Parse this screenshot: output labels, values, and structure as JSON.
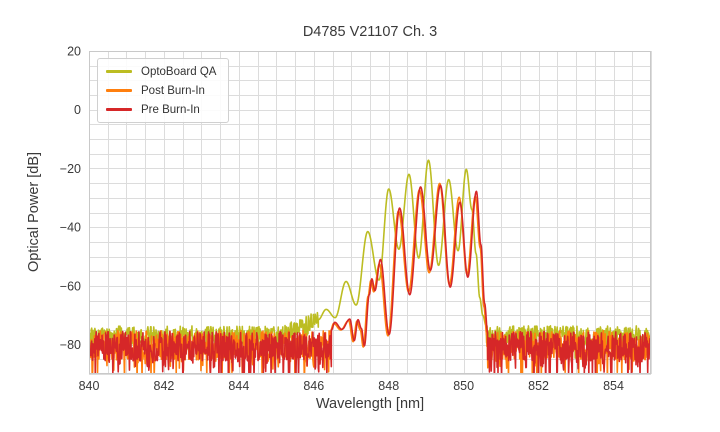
{
  "title": "D4785 V21107 Ch. 3",
  "axes": {
    "xlabel": "Wavelength [nm]",
    "ylabel": "Optical Power [dB]",
    "xlim": [
      840,
      855
    ],
    "ylim": [
      -90,
      20
    ],
    "xticks": [
      {
        "value": 840,
        "label": "840"
      },
      {
        "value": 842,
        "label": "842"
      },
      {
        "value": 844,
        "label": "844"
      },
      {
        "value": 846,
        "label": "846"
      },
      {
        "value": 848,
        "label": "848"
      },
      {
        "value": 850,
        "label": "850"
      },
      {
        "value": 852,
        "label": "852"
      },
      {
        "value": 854,
        "label": "854"
      }
    ],
    "yticks": [
      {
        "value": 20,
        "label": "20"
      },
      {
        "value": 0,
        "label": "0"
      },
      {
        "value": -20,
        "label": "−20"
      },
      {
        "value": -40,
        "label": "−40"
      },
      {
        "value": -60,
        "label": "−60"
      },
      {
        "value": -80,
        "label": "−80"
      }
    ],
    "x_minor_step": 0.5,
    "y_minor_step": 5,
    "grid": true,
    "grid_color": "#dcdcdc",
    "spine_color": "#c9c9c9",
    "tick_color": "#3a3a3a"
  },
  "legend": {
    "position": "upper-left"
  },
  "chart_data": {
    "type": "line",
    "title": "D4785 V21107 Ch. 3",
    "xlabel": "Wavelength [nm]",
    "ylabel": "Optical Power [dB]",
    "xlim": [
      840,
      855
    ],
    "ylim": [
      -90,
      20
    ],
    "description": "Optical spectra of a VCSEL channel: noise floor near -80 dB outside the 846.3-850.6 nm band; multimode peaks spaced ~0.53 nm inside the band.",
    "series": [
      {
        "name": "OptoBoard QA",
        "color": "#bcbd22",
        "segments": [
          {
            "type": "noise",
            "x0": 840.0,
            "x1": 846.12,
            "base": -76.8,
            "amp": 3.2,
            "spike_prob": 0.1,
            "spike_depth": 6,
            "seed": 101,
            "ramp": [
              845.1,
              846.12,
              5.0
            ]
          },
          {
            "type": "points",
            "pts": [
              [
                846.12,
                -71.5
              ],
              [
                846.33,
                -68.0
              ],
              [
                846.57,
                -70.8
              ],
              [
                846.86,
                -58.5
              ],
              [
                847.13,
                -66.5
              ],
              [
                847.44,
                -41.5
              ],
              [
                847.74,
                -58.0
              ],
              [
                848.0,
                -27.0
              ],
              [
                848.27,
                -47.5
              ],
              [
                848.54,
                -22.0
              ],
              [
                848.8,
                -50.5
              ],
              [
                849.06,
                -17.2
              ],
              [
                849.33,
                -53.0
              ],
              [
                849.6,
                -23.8
              ],
              [
                849.85,
                -48.0
              ],
              [
                850.07,
                -20.3
              ],
              [
                850.22,
                -34.0
              ],
              [
                850.33,
                -49.0
              ],
              [
                850.43,
                -64.0
              ],
              [
                850.51,
                -70.0
              ],
              [
                850.6,
                -73.5
              ]
            ]
          },
          {
            "type": "noise",
            "x0": 850.6,
            "x1": 855.0,
            "base": -76.8,
            "amp": 3.2,
            "spike_prob": 0.1,
            "spike_depth": 6,
            "seed": 111
          }
        ]
      },
      {
        "name": "Post Burn-In",
        "color": "#ff7f0e",
        "segments": [
          {
            "type": "noise",
            "x0": 840.0,
            "x1": 846.44,
            "base": -80.2,
            "amp": 5.0,
            "spike_prob": 0.2,
            "spike_depth": 10,
            "seed": 202
          },
          {
            "type": "points",
            "pts": [
              [
                846.44,
                -75.5
              ],
              [
                846.53,
                -72.8
              ],
              [
                846.72,
                -75.0
              ],
              [
                846.93,
                -71.8
              ],
              [
                847.05,
                -79.0
              ],
              [
                847.15,
                -72.0
              ],
              [
                847.24,
                -75.0
              ],
              [
                847.32,
                -80.8
              ],
              [
                847.45,
                -63.5
              ],
              [
                847.52,
                -58.2
              ],
              [
                847.6,
                -62.0
              ],
              [
                847.75,
                -52.5
              ],
              [
                847.98,
                -77.0
              ],
              [
                848.26,
                -34.5
              ],
              [
                848.53,
                -62.0
              ],
              [
                848.82,
                -27.3
              ],
              [
                849.08,
                -55.5
              ],
              [
                849.36,
                -25.1
              ],
              [
                849.62,
                -59.5
              ],
              [
                849.88,
                -29.8
              ],
              [
                850.09,
                -56.0
              ],
              [
                850.31,
                -29.5
              ],
              [
                850.44,
                -47.0
              ],
              [
                850.54,
                -67.0
              ],
              [
                850.62,
                -77.0
              ]
            ]
          },
          {
            "type": "noise",
            "x0": 850.62,
            "x1": 855.0,
            "base": -80.2,
            "amp": 5.0,
            "spike_prob": 0.2,
            "spike_depth": 10,
            "seed": 212
          }
        ]
      },
      {
        "name": "Pre Burn-In",
        "color": "#d62728",
        "segments": [
          {
            "type": "noise",
            "x0": 840.0,
            "x1": 846.47,
            "base": -80.5,
            "amp": 5.0,
            "spike_prob": 0.22,
            "spike_depth": 10,
            "seed": 303
          },
          {
            "type": "points",
            "pts": [
              [
                846.47,
                -75.0
              ],
              [
                846.56,
                -72.4
              ],
              [
                846.75,
                -74.8
              ],
              [
                846.96,
                -71.3
              ],
              [
                847.08,
                -78.6
              ],
              [
                847.18,
                -71.5
              ],
              [
                847.27,
                -74.5
              ],
              [
                847.35,
                -80.4
              ],
              [
                847.48,
                -63.0
              ],
              [
                847.55,
                -57.6
              ],
              [
                847.63,
                -61.6
              ],
              [
                847.78,
                -51.0
              ],
              [
                848.01,
                -76.5
              ],
              [
                848.29,
                -33.5
              ],
              [
                848.56,
                -63.0
              ],
              [
                848.85,
                -26.3
              ],
              [
                849.11,
                -54.7
              ],
              [
                849.38,
                -25.8
              ],
              [
                849.64,
                -60.4
              ],
              [
                849.9,
                -31.5
              ],
              [
                850.11,
                -57.0
              ],
              [
                850.34,
                -27.8
              ],
              [
                850.46,
                -46.0
              ],
              [
                850.56,
                -66.0
              ],
              [
                850.64,
                -76.0
              ]
            ]
          },
          {
            "type": "noise",
            "x0": 850.64,
            "x1": 855.0,
            "base": -80.5,
            "amp": 5.0,
            "spike_prob": 0.22,
            "spike_depth": 10,
            "seed": 313
          }
        ]
      }
    ]
  }
}
